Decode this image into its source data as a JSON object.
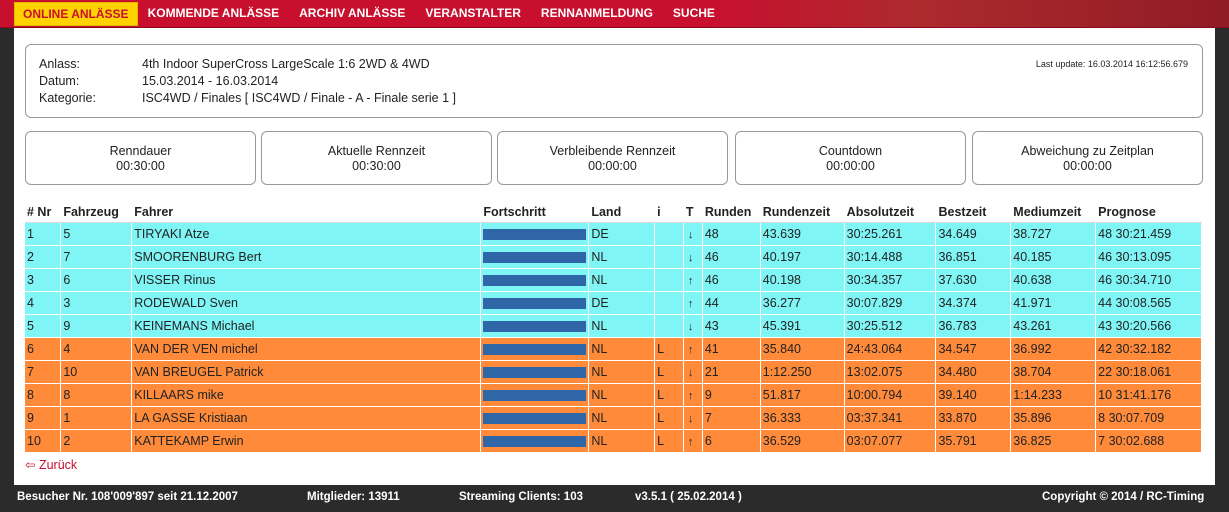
{
  "nav": {
    "items": [
      {
        "label": "ONLINE ANLÄSSE",
        "active": true
      },
      {
        "label": "KOMMENDE ANLÄSSE"
      },
      {
        "label": "ARCHIV ANLÄSSE"
      },
      {
        "label": "VERANSTALTER"
      },
      {
        "label": "RENNANMELDUNG"
      },
      {
        "label": "SUCHE"
      }
    ]
  },
  "event": {
    "anlass_label": "Anlass:",
    "anlass": "4th Indoor SuperCross LargeScale 1:6 2WD & 4WD",
    "datum_label": "Datum:",
    "datum": "15.03.2014 - 16.03.2014",
    "kategorie_label": "Kategorie:",
    "kategorie": "ISC4WD / Finales [ ISC4WD / Finale - A - Finale serie 1 ]",
    "last_update": "Last update: 16.03.2014 16:12:56.679"
  },
  "timers": [
    {
      "label": "Renndauer",
      "value": "00:30:00"
    },
    {
      "label": "Aktuelle Rennzeit",
      "value": "00:30:00"
    },
    {
      "label": "Verbleibende Rennzeit",
      "value": "00:00:00"
    },
    {
      "label": "Countdown",
      "value": "00:00:00"
    },
    {
      "label": "Abweichung zu Zeitplan",
      "value": "00:00:00"
    }
  ],
  "table": {
    "headers": [
      "# Nr",
      "Fahrzeug",
      "Fahrer",
      "Fortschritt",
      "Land",
      "i",
      "T",
      "Runden",
      "Rundenzeit",
      "Absolutzeit",
      "Bestzeit",
      "Mediumzeit",
      "Prognose"
    ],
    "rows": [
      {
        "nr": "1",
        "fz": "5",
        "fahrer": "TIRYAKI Atze",
        "progress": 1.0,
        "land": "DE",
        "i": "",
        "t": "down",
        "runden": "48",
        "rundenzeit": "43.639",
        "absolut": "30:25.261",
        "best": "34.649",
        "medium": "38.727",
        "prognose": "48 30:21.459",
        "style": "q"
      },
      {
        "nr": "2",
        "fz": "7",
        "fahrer": "SMOORENBURG Bert",
        "progress": 1.0,
        "land": "NL",
        "i": "",
        "t": "down",
        "runden": "46",
        "rundenzeit": "40.197",
        "absolut": "30:14.488",
        "best": "36.851",
        "medium": "40.185",
        "prognose": "46 30:13.095",
        "style": "q"
      },
      {
        "nr": "3",
        "fz": "6",
        "fahrer": "VISSER Rinus",
        "progress": 1.0,
        "land": "NL",
        "i": "",
        "t": "up",
        "runden": "46",
        "rundenzeit": "40.198",
        "absolut": "30:34.357",
        "best": "37.630",
        "medium": "40.638",
        "prognose": "46 30:34.710",
        "style": "q"
      },
      {
        "nr": "4",
        "fz": "3",
        "fahrer": "RODEWALD Sven",
        "progress": 1.0,
        "land": "DE",
        "i": "",
        "t": "up",
        "runden": "44",
        "rundenzeit": "36.277",
        "absolut": "30:07.829",
        "best": "34.374",
        "medium": "41.971",
        "prognose": "44 30:08.565",
        "style": "q"
      },
      {
        "nr": "5",
        "fz": "9",
        "fahrer": "KEINEMANS Michael",
        "progress": 1.0,
        "land": "NL",
        "i": "",
        "t": "down",
        "runden": "43",
        "rundenzeit": "45.391",
        "absolut": "30:25.512",
        "best": "36.783",
        "medium": "43.261",
        "prognose": "43 30:20.566",
        "style": "q"
      },
      {
        "nr": "6",
        "fz": "4",
        "fahrer": "VAN DER VEN michel",
        "progress": 1.0,
        "land": "NL",
        "i": "L",
        "t": "up",
        "runden": "41",
        "rundenzeit": "35.840",
        "absolut": "24:43.064",
        "best": "34.547",
        "medium": "36.992",
        "prognose": "42 30:32.182",
        "style": "o"
      },
      {
        "nr": "7",
        "fz": "10",
        "fahrer": "VAN BREUGEL Patrick",
        "progress": 1.0,
        "land": "NL",
        "i": "L",
        "t": "down",
        "runden": "21",
        "rundenzeit": "1:12.250",
        "absolut": "13:02.075",
        "best": "34.480",
        "medium": "38.704",
        "prognose": "22 30:18.061",
        "style": "o"
      },
      {
        "nr": "8",
        "fz": "8",
        "fahrer": "KILLAARS mike",
        "progress": 1.0,
        "land": "NL",
        "i": "L",
        "t": "up",
        "runden": "9",
        "rundenzeit": "51.817",
        "absolut": "10:00.794",
        "best": "39.140",
        "medium": "1:14.233",
        "prognose": "10 31:41.176",
        "style": "o"
      },
      {
        "nr": "9",
        "fz": "1",
        "fahrer": "LA GASSE Kristiaan",
        "progress": 1.0,
        "land": "NL",
        "i": "L",
        "t": "down",
        "runden": "7",
        "rundenzeit": "36.333",
        "absolut": "03:37.341",
        "best": "33.870",
        "medium": "35.896",
        "prognose": "8 30:07.709",
        "style": "o"
      },
      {
        "nr": "10",
        "fz": "2",
        "fahrer": "KATTEKAMP Erwin",
        "progress": 1.0,
        "land": "NL",
        "i": "L",
        "t": "up",
        "runden": "6",
        "rundenzeit": "36.529",
        "absolut": "03:07.077",
        "best": "35.791",
        "medium": "36.825",
        "prognose": "7 30:02.688",
        "style": "o"
      }
    ]
  },
  "back": {
    "icon": "back-arrow-icon",
    "glyph": "⇦",
    "label": "Zurück"
  },
  "footer": {
    "visitors": "Besucher Nr. 108'009'897 seit 21.12.2007",
    "members": "Mitglieder: 13911",
    "streaming": "Streaming Clients: 103",
    "version": "v3.5.1 ( 25.02.2014 )",
    "copyright": "Copyright © 2014 / RC-Timing"
  },
  "colors": {
    "brand": "#c8102e",
    "active_nav": "#ffd200",
    "row_qualified": "#7ff5f6",
    "row_other": "#ff8a3a",
    "progress": "#2f66a8"
  }
}
